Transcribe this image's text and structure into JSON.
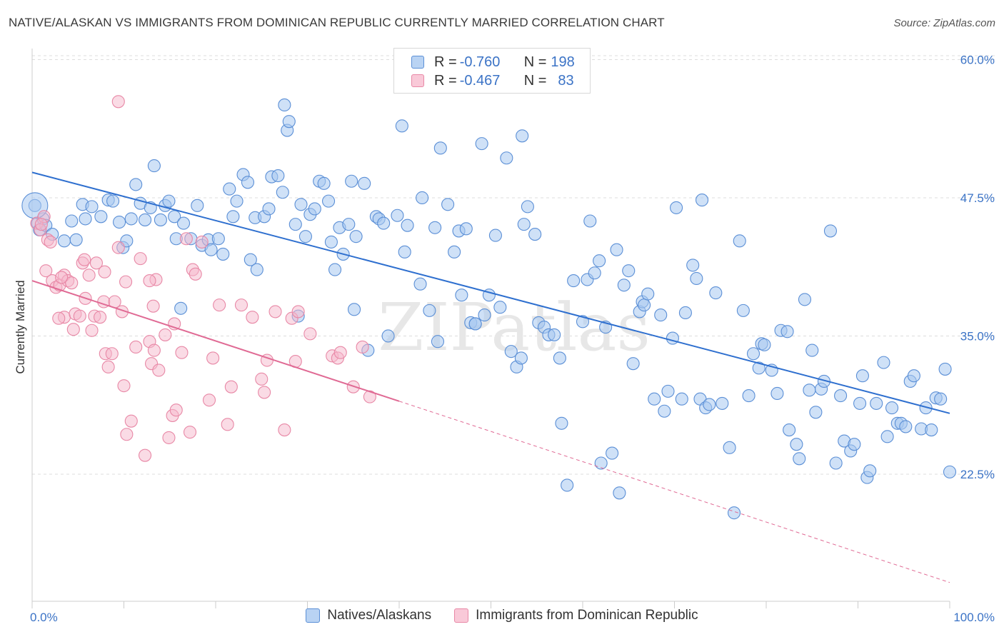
{
  "title": "NATIVE/ALASKAN VS IMMIGRANTS FROM DOMINICAN REPUBLIC CURRENTLY MARRIED CORRELATION CHART",
  "source": "Source: ZipAtlas.com",
  "legend": {
    "series1": {
      "r_label": "R = ",
      "r_value": "-0.760",
      "n_label": "N = ",
      "n_value": "198"
    },
    "series2": {
      "r_label": "R = ",
      "r_value": "-0.467",
      "n_label": "N = ",
      "n_value": "83"
    }
  },
  "colors": {
    "blue_fill": "#a8c8f0",
    "blue_stroke": "#5b8fd6",
    "blue_line": "#2e6fcf",
    "pink_fill": "#f6b8cb",
    "pink_stroke": "#e888a6",
    "pink_line": "#e06a94",
    "grid": "#dddddd",
    "axis_label": "#3b73c6"
  },
  "chart_data": {
    "type": "scatter",
    "title": "NATIVE/ALASKAN VS IMMIGRANTS FROM DOMINICAN REPUBLIC CURRENTLY MARRIED CORRELATION CHART",
    "xlabel": "",
    "ylabel": "Currently Married",
    "xlim": [
      0,
      100
    ],
    "ylim": [
      11,
      61
    ],
    "x_tick_labels": [
      "0.0%",
      "100.0%"
    ],
    "y_ticks": [
      22.5,
      35.0,
      47.5,
      60.0
    ],
    "y_tick_labels": [
      "22.5%",
      "35.0%",
      "47.5%",
      "60.0%"
    ],
    "grid": true,
    "watermark": "ZIPatlas",
    "series": [
      {
        "name": "Natives/Alaskans",
        "trend": {
          "x0": 0,
          "y0": 49.8,
          "x1": 100,
          "y1": 28.0
        },
        "points": [
          [
            0.3,
            46.8
          ],
          [
            0.6,
            45.2
          ],
          [
            0.8,
            44.6
          ],
          [
            1.2,
            45.6
          ],
          [
            1.5,
            45.0
          ],
          [
            2.2,
            44.2
          ],
          [
            3.5,
            43.6
          ],
          [
            4.8,
            43.7
          ],
          [
            4.3,
            45.4
          ],
          [
            5.5,
            46.9
          ],
          [
            5.8,
            45.6
          ],
          [
            6.5,
            46.7
          ],
          [
            7.5,
            45.8
          ],
          [
            8.3,
            47.3
          ],
          [
            8.8,
            47.2
          ],
          [
            9.5,
            45.3
          ],
          [
            9.9,
            43.0
          ],
          [
            10.3,
            43.6
          ],
          [
            10.8,
            45.6
          ],
          [
            11.3,
            48.7
          ],
          [
            11.8,
            47.0
          ],
          [
            12.3,
            45.5
          ],
          [
            12.9,
            46.6
          ],
          [
            13.3,
            50.4
          ],
          [
            14.0,
            45.5
          ],
          [
            14.5,
            46.8
          ],
          [
            14.9,
            47.2
          ],
          [
            15.5,
            45.8
          ],
          [
            15.7,
            43.8
          ],
          [
            16.5,
            45.2
          ],
          [
            16.2,
            37.5
          ],
          [
            17.3,
            43.8
          ],
          [
            18.0,
            46.8
          ],
          [
            18.5,
            43.2
          ],
          [
            19.2,
            43.7
          ],
          [
            19.5,
            42.8
          ],
          [
            20.3,
            43.8
          ],
          [
            20.8,
            42.4
          ],
          [
            21.5,
            48.3
          ],
          [
            21.9,
            45.8
          ],
          [
            22.3,
            47.2
          ],
          [
            23.0,
            49.6
          ],
          [
            23.5,
            48.9
          ],
          [
            23.8,
            41.9
          ],
          [
            24.5,
            41.0
          ],
          [
            24.3,
            45.7
          ],
          [
            25.3,
            45.8
          ],
          [
            25.8,
            46.5
          ],
          [
            26.1,
            49.4
          ],
          [
            26.8,
            49.5
          ],
          [
            27.3,
            48.0
          ],
          [
            27.5,
            55.9
          ],
          [
            27.8,
            53.6
          ],
          [
            28.0,
            54.4
          ],
          [
            28.7,
            45.1
          ],
          [
            29.0,
            36.8
          ],
          [
            29.3,
            46.9
          ],
          [
            29.8,
            44.0
          ],
          [
            30.3,
            46.0
          ],
          [
            30.8,
            46.5
          ],
          [
            31.3,
            49.0
          ],
          [
            31.8,
            48.8
          ],
          [
            32.3,
            47.2
          ],
          [
            32.6,
            43.5
          ],
          [
            33.0,
            41.0
          ],
          [
            33.5,
            44.8
          ],
          [
            33.9,
            42.4
          ],
          [
            34.5,
            45.1
          ],
          [
            34.8,
            49.0
          ],
          [
            35.3,
            44.0
          ],
          [
            35.1,
            37.4
          ],
          [
            36.2,
            48.8
          ],
          [
            36.6,
            33.7
          ],
          [
            37.5,
            45.8
          ],
          [
            37.8,
            45.6
          ],
          [
            38.3,
            45.2
          ],
          [
            38.8,
            35.0
          ],
          [
            39.8,
            45.9
          ],
          [
            40.3,
            54.0
          ],
          [
            40.6,
            42.6
          ],
          [
            40.9,
            45.0
          ],
          [
            42.5,
            47.5
          ],
          [
            42.3,
            39.7
          ],
          [
            43.3,
            37.3
          ],
          [
            44.2,
            34.5
          ],
          [
            43.9,
            44.8
          ],
          [
            44.5,
            52.0
          ],
          [
            45.3,
            46.9
          ],
          [
            46.0,
            42.6
          ],
          [
            46.5,
            44.5
          ],
          [
            46.8,
            38.7
          ],
          [
            47.3,
            44.7
          ],
          [
            47.8,
            36.2
          ],
          [
            48.3,
            36.1
          ],
          [
            48.3,
            36.1
          ],
          [
            49.0,
            52.4
          ],
          [
            49.3,
            36.9
          ],
          [
            49.8,
            38.7
          ],
          [
            50.5,
            44.1
          ],
          [
            51.0,
            37.6
          ],
          [
            51.7,
            51.1
          ],
          [
            52.2,
            33.6
          ],
          [
            52.8,
            32.2
          ],
          [
            53.3,
            33.0
          ],
          [
            53.4,
            53.1
          ],
          [
            53.6,
            45.1
          ],
          [
            54.0,
            46.7
          ],
          [
            54.8,
            44.2
          ],
          [
            55.2,
            36.2
          ],
          [
            55.8,
            35.8
          ],
          [
            56.3,
            35.1
          ],
          [
            56.9,
            35.1
          ],
          [
            57.5,
            33.0
          ],
          [
            57.7,
            27.1
          ],
          [
            58.3,
            21.5
          ],
          [
            59.0,
            40.0
          ],
          [
            60.0,
            36.3
          ],
          [
            60.5,
            40.1
          ],
          [
            60.8,
            45.4
          ],
          [
            61.3,
            40.7
          ],
          [
            61.8,
            41.8
          ],
          [
            62.0,
            23.5
          ],
          [
            62.5,
            35.8
          ],
          [
            63.2,
            24.4
          ],
          [
            63.7,
            42.8
          ],
          [
            64.0,
            20.8
          ],
          [
            64.5,
            39.6
          ],
          [
            65.0,
            40.9
          ],
          [
            65.5,
            32.5
          ],
          [
            66.2,
            37.2
          ],
          [
            66.5,
            38.1
          ],
          [
            66.7,
            37.8
          ],
          [
            67.1,
            38.8
          ],
          [
            67.8,
            29.3
          ],
          [
            68.5,
            36.9
          ],
          [
            68.9,
            28.2
          ],
          [
            69.3,
            30.0
          ],
          [
            69.8,
            34.8
          ],
          [
            70.2,
            46.6
          ],
          [
            70.8,
            29.3
          ],
          [
            71.2,
            37.1
          ],
          [
            72.0,
            41.4
          ],
          [
            72.4,
            40.2
          ],
          [
            72.8,
            29.3
          ],
          [
            73.0,
            47.3
          ],
          [
            73.4,
            28.5
          ],
          [
            73.8,
            28.8
          ],
          [
            74.5,
            38.9
          ],
          [
            75.2,
            28.9
          ],
          [
            76.0,
            24.9
          ],
          [
            76.5,
            19.0
          ],
          [
            77.1,
            43.6
          ],
          [
            77.5,
            37.3
          ],
          [
            78.1,
            29.6
          ],
          [
            78.6,
            33.4
          ],
          [
            79.2,
            32.1
          ],
          [
            79.5,
            34.3
          ],
          [
            79.8,
            34.2
          ],
          [
            80.6,
            31.9
          ],
          [
            81.2,
            29.8
          ],
          [
            81.6,
            35.5
          ],
          [
            82.3,
            35.4
          ],
          [
            82.5,
            26.5
          ],
          [
            83.3,
            25.2
          ],
          [
            83.6,
            23.9
          ],
          [
            84.2,
            38.3
          ],
          [
            84.7,
            30.1
          ],
          [
            85.0,
            33.7
          ],
          [
            85.4,
            28.1
          ],
          [
            86.0,
            30.2
          ],
          [
            86.3,
            30.9
          ],
          [
            87.0,
            44.5
          ],
          [
            87.6,
            23.5
          ],
          [
            88.1,
            29.6
          ],
          [
            88.5,
            25.5
          ],
          [
            89.2,
            24.6
          ],
          [
            89.6,
            25.2
          ],
          [
            90.2,
            28.9
          ],
          [
            90.5,
            31.4
          ],
          [
            91.0,
            22.2
          ],
          [
            91.3,
            22.8
          ],
          [
            92.0,
            28.9
          ],
          [
            92.8,
            32.6
          ],
          [
            93.2,
            25.9
          ],
          [
            93.7,
            28.5
          ],
          [
            94.3,
            27.1
          ],
          [
            94.7,
            27.1
          ],
          [
            95.2,
            26.8
          ],
          [
            95.7,
            30.9
          ],
          [
            96.1,
            31.4
          ],
          [
            96.9,
            26.6
          ],
          [
            97.4,
            28.5
          ],
          [
            98.0,
            26.5
          ],
          [
            98.5,
            29.4
          ],
          [
            99.0,
            29.3
          ],
          [
            99.5,
            32.0
          ],
          [
            100.0,
            22.7
          ]
        ]
      },
      {
        "name": "Immigrants from Dominican Republic",
        "trend": {
          "x0": 0,
          "y0": 40.0,
          "x1": 40,
          "y1": 29.1
        },
        "trend_extension": {
          "x0": 40,
          "y0": 29.1,
          "x1": 100,
          "y1": 12.7
        },
        "points": [
          [
            0.5,
            45.2
          ],
          [
            0.9,
            44.6
          ],
          [
            1.3,
            45.8
          ],
          [
            1.7,
            43.7
          ],
          [
            2.0,
            43.5
          ],
          [
            1.5,
            40.9
          ],
          [
            2.2,
            40.0
          ],
          [
            2.6,
            39.4
          ],
          [
            3.0,
            39.6
          ],
          [
            3.5,
            40.5
          ],
          [
            3.5,
            36.7
          ],
          [
            3.9,
            40.0
          ],
          [
            4.3,
            39.8
          ],
          [
            4.7,
            37.0
          ],
          [
            4.5,
            35.6
          ],
          [
            5.2,
            36.8
          ],
          [
            5.5,
            41.6
          ],
          [
            5.8,
            38.4
          ],
          [
            6.2,
            40.5
          ],
          [
            6.5,
            35.5
          ],
          [
            6.8,
            36.8
          ],
          [
            7.0,
            41.6
          ],
          [
            7.4,
            36.7
          ],
          [
            7.8,
            38.1
          ],
          [
            8.0,
            33.4
          ],
          [
            8.3,
            32.2
          ],
          [
            8.7,
            33.4
          ],
          [
            9.0,
            38.1
          ],
          [
            9.4,
            43.0
          ],
          [
            9.8,
            37.2
          ],
          [
            9.4,
            56.2
          ],
          [
            10.0,
            30.5
          ],
          [
            10.3,
            26.1
          ],
          [
            10.8,
            27.3
          ],
          [
            11.3,
            34.0
          ],
          [
            11.8,
            42.0
          ],
          [
            12.3,
            24.2
          ],
          [
            12.8,
            34.5
          ],
          [
            13.3,
            33.7
          ],
          [
            13.0,
            32.5
          ],
          [
            13.8,
            31.9
          ],
          [
            13.5,
            40.1
          ],
          [
            14.5,
            35.1
          ],
          [
            14.9,
            25.8
          ],
          [
            15.3,
            27.8
          ],
          [
            15.7,
            28.3
          ],
          [
            15.5,
            36.1
          ],
          [
            16.3,
            33.5
          ],
          [
            16.8,
            43.8
          ],
          [
            17.2,
            26.3
          ],
          [
            17.5,
            41.0
          ],
          [
            17.8,
            40.6
          ],
          [
            18.5,
            43.5
          ],
          [
            19.3,
            29.2
          ],
          [
            19.7,
            33.0
          ],
          [
            20.4,
            37.8
          ],
          [
            21.3,
            27.0
          ],
          [
            21.7,
            30.4
          ],
          [
            22.8,
            37.8
          ],
          [
            24.0,
            36.7
          ],
          [
            25.0,
            31.1
          ],
          [
            25.3,
            29.9
          ],
          [
            25.6,
            32.8
          ],
          [
            26.5,
            37.2
          ],
          [
            27.5,
            26.5
          ],
          [
            28.3,
            36.6
          ],
          [
            28.7,
            32.7
          ],
          [
            29.0,
            37.2
          ],
          [
            30.3,
            35.2
          ],
          [
            32.7,
            33.2
          ],
          [
            33.3,
            33.0
          ],
          [
            33.6,
            33.5
          ],
          [
            35.0,
            30.4
          ],
          [
            36.0,
            34.0
          ],
          [
            36.8,
            29.5
          ],
          [
            1.0,
            45.1
          ],
          [
            3.2,
            40.3
          ],
          [
            7.9,
            40.8
          ],
          [
            12.8,
            40.0
          ],
          [
            5.7,
            41.9
          ],
          [
            2.9,
            36.6
          ],
          [
            10.2,
            39.9
          ],
          [
            13.2,
            37.7
          ]
        ]
      }
    ]
  },
  "bottom_legend": [
    "Natives/Alaskans",
    "Immigrants from Dominican Republic"
  ]
}
